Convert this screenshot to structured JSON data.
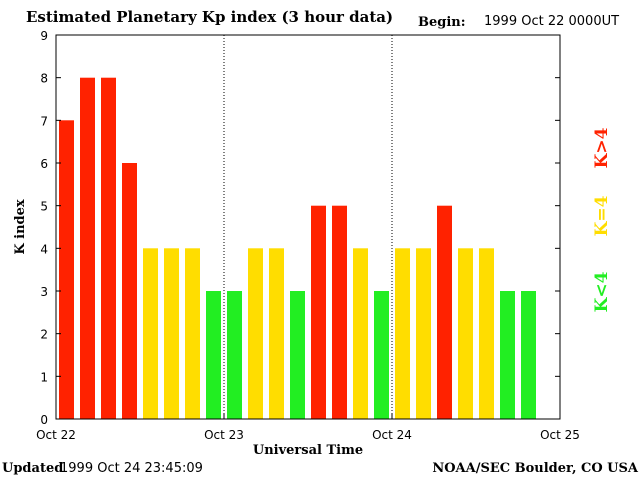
{
  "header": {
    "title": "Estimated Planetary Kp index (3 hour data)",
    "begin_label": "Begin:",
    "begin_value": "1999 Oct 22 0000UT"
  },
  "footer": {
    "updated_label": "Updated",
    "updated_value": "1999 Oct 24 23:45:09",
    "credit": "NOAA/SEC Boulder, CO USA"
  },
  "legend": {
    "low": {
      "label": "K<4",
      "color": "#22ee22"
    },
    "mid": {
      "label": "K=4",
      "color": "#ffdd00"
    },
    "high": {
      "label": "K>4",
      "color": "#ff2200"
    }
  },
  "chart_data": {
    "type": "bar",
    "title": "Estimated Planetary Kp index (3 hour data)",
    "xlabel": "Universal Time",
    "ylabel": "K index",
    "ylim": [
      0,
      9
    ],
    "yticks": [
      0,
      1,
      2,
      3,
      4,
      5,
      6,
      7,
      8,
      9
    ],
    "xticks": [
      "Oct 22",
      "Oct 23",
      "Oct 24",
      "Oct 25"
    ],
    "day_dividers_after_interval": [
      8,
      16
    ],
    "interval_hours": 3,
    "values": [
      7,
      8,
      8,
      6,
      4,
      4,
      4,
      3,
      3,
      4,
      4,
      3,
      5,
      5,
      4,
      3,
      4,
      4,
      5,
      4,
      4,
      3,
      3
    ]
  }
}
